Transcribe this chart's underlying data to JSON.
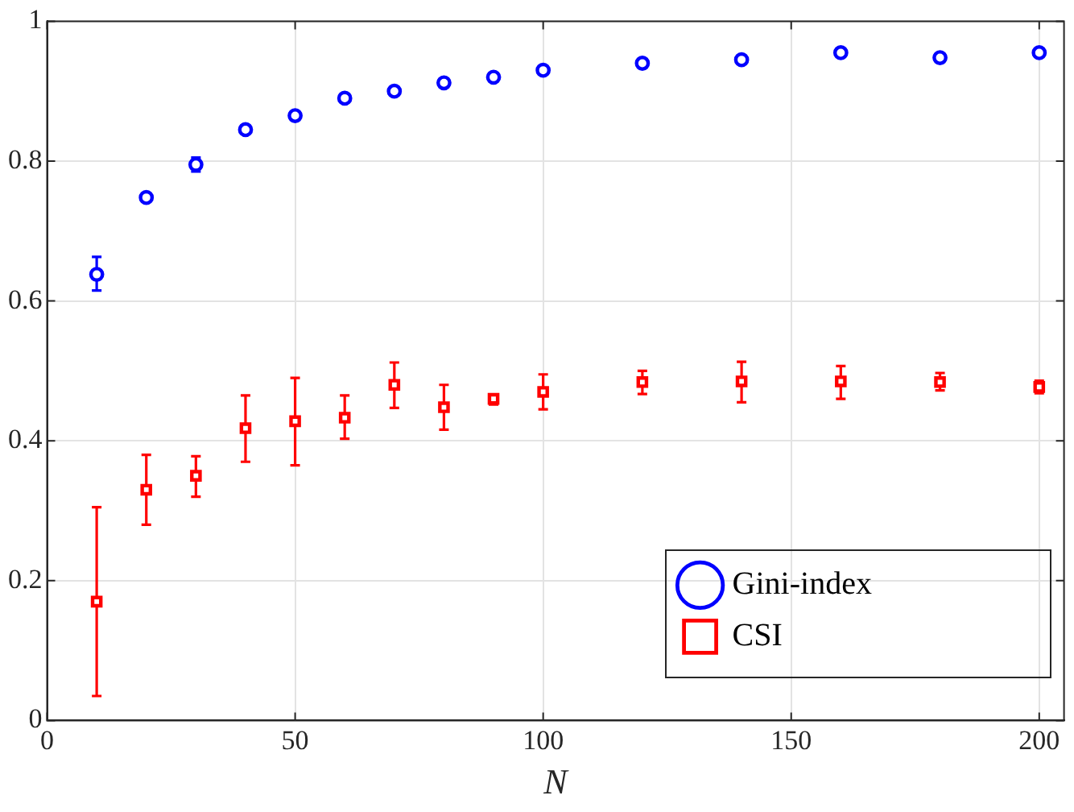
{
  "chart_data": {
    "type": "scatter",
    "xlabel": "N",
    "x": [
      10,
      20,
      30,
      40,
      50,
      60,
      70,
      80,
      90,
      100,
      120,
      140,
      160,
      180,
      200
    ],
    "series": [
      {
        "name": "Gini-index",
        "color": "#0000ff",
        "marker": "circle",
        "values": [
          0.638,
          0.748,
          0.795,
          0.845,
          0.865,
          0.89,
          0.9,
          0.912,
          0.92,
          0.93,
          0.94,
          0.945,
          0.955,
          0.948,
          0.955
        ],
        "errors": [
          [
            0.615,
            0.663
          ],
          null,
          [
            0.785,
            0.805
          ],
          null,
          null,
          null,
          null,
          null,
          null,
          null,
          null,
          null,
          null,
          null,
          null
        ]
      },
      {
        "name": "CSI",
        "color": "#ff0000",
        "marker": "square",
        "values": [
          0.17,
          0.33,
          0.35,
          0.418,
          0.428,
          0.433,
          0.48,
          0.448,
          0.46,
          0.47,
          0.484,
          0.485,
          0.485,
          0.484,
          0.477
        ],
        "errors": [
          [
            0.035,
            0.305
          ],
          [
            0.28,
            0.38
          ],
          [
            0.32,
            0.378
          ],
          [
            0.37,
            0.465
          ],
          [
            0.365,
            0.49
          ],
          [
            0.403,
            0.465
          ],
          [
            0.447,
            0.512
          ],
          [
            0.416,
            0.48
          ],
          [
            0.452,
            0.466
          ],
          [
            0.445,
            0.495
          ],
          [
            0.467,
            0.5
          ],
          [
            0.455,
            0.513
          ],
          [
            0.46,
            0.507
          ],
          [
            0.472,
            0.497
          ],
          [
            0.468,
            0.486
          ]
        ]
      }
    ],
    "xlim": [
      0,
      205
    ],
    "xticks": [
      0,
      50,
      100,
      150,
      200
    ],
    "ylim": [
      0,
      1
    ],
    "yticks": [
      0,
      0.2,
      0.4,
      0.6,
      0.8,
      1
    ],
    "grid": true,
    "legend": "bottom right"
  }
}
